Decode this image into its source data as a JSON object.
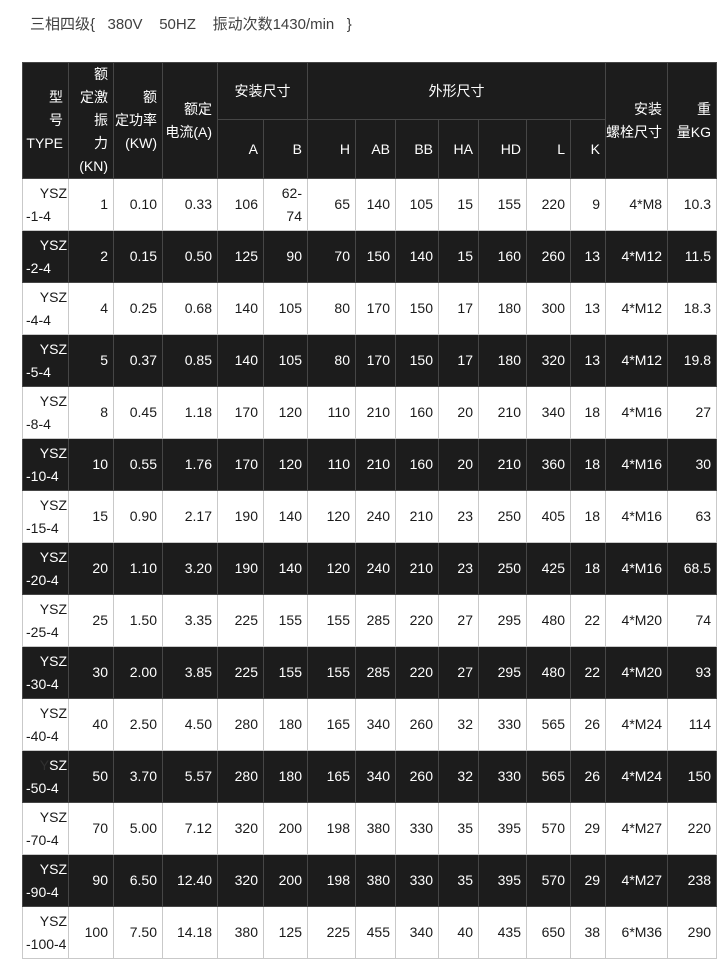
{
  "title": "三相四级{   380V    50HZ    振动次数1430/min   }",
  "colors": {
    "header_bg": "#1c1c1c",
    "dark_row_bg": "#1c1c1c",
    "dark_row_border": "#464646",
    "light_row_border": "#c9c9c9",
    "title_color": "#3f3f3f",
    "dim_y_color": "#303030"
  },
  "table": {
    "header": {
      "type": "型\n号\nTYPE",
      "force": "额\n定激振\n力(KN)",
      "power": "额\n定功率\n(KW)",
      "current": "额定\n电流(A)",
      "install_dims": "安装尺寸",
      "overall_dims": "外形尺寸",
      "bolt": "安装\n螺栓尺寸",
      "weight": "重\n量KG",
      "sub_labels": [
        "A",
        "B",
        "H",
        "AB",
        "BB",
        "HA",
        "HD",
        "L",
        "K"
      ]
    },
    "rows": [
      {
        "model_line1": "YSZ",
        "model_line2": "-1-4",
        "force_kn": "1",
        "power_kw": "0.10",
        "current_a": "0.33",
        "A": "106",
        "B": "62-74",
        "H": "65",
        "AB": "140",
        "BB": "105",
        "HA": "15",
        "HD": "155",
        "L": "220",
        "K": "9",
        "bolt": "4*M8",
        "weight_kg": "10.3"
      },
      {
        "model_line1": "YSZ",
        "model_line2": "-2-4",
        "force_kn": "2",
        "power_kw": "0.15",
        "current_a": "0.50",
        "A": "125",
        "B": "90",
        "H": "70",
        "AB": "150",
        "BB": "140",
        "HA": "15",
        "HD": "160",
        "L": "260",
        "K": "13",
        "bolt": "4*M12",
        "weight_kg": "11.5"
      },
      {
        "model_line1": "YSZ",
        "model_line2": "-4-4",
        "force_kn": "4",
        "power_kw": "0.25",
        "current_a": "0.68",
        "A": "140",
        "B": "105",
        "H": "80",
        "AB": "170",
        "BB": "150",
        "HA": "17",
        "HD": "180",
        "L": "300",
        "K": "13",
        "bolt": "4*M12",
        "weight_kg": "18.3"
      },
      {
        "model_line1": "YSZ",
        "model_line2": "-5-4",
        "force_kn": "5",
        "power_kw": "0.37",
        "current_a": "0.85",
        "A": "140",
        "B": "105",
        "H": "80",
        "AB": "170",
        "BB": "150",
        "HA": "17",
        "HD": "180",
        "L": "320",
        "K": "13",
        "bolt": "4*M12",
        "weight_kg": "19.8"
      },
      {
        "model_line1": "YSZ",
        "model_line2": "-8-4",
        "force_kn": "8",
        "power_kw": "0.45",
        "current_a": "1.18",
        "A": "170",
        "B": "120",
        "H": "110",
        "AB": "210",
        "BB": "160",
        "HA": "20",
        "HD": "210",
        "L": "340",
        "K": "18",
        "bolt": "4*M16",
        "weight_kg": "27"
      },
      {
        "model_line1": "YSZ",
        "model_line2": "-10-4",
        "force_kn": "10",
        "power_kw": "0.55",
        "current_a": "1.76",
        "A": "170",
        "B": "120",
        "H": "110",
        "AB": "210",
        "BB": "160",
        "HA": "20",
        "HD": "210",
        "L": "360",
        "K": "18",
        "bolt": "4*M16",
        "weight_kg": "30"
      },
      {
        "model_line1": "YSZ",
        "model_line2": "-15-4",
        "force_kn": "15",
        "power_kw": "0.90",
        "current_a": "2.17",
        "A": "190",
        "B": "140",
        "H": "120",
        "AB": "240",
        "BB": "210",
        "HA": "23",
        "HD": "250",
        "L": "405",
        "K": "18",
        "bolt": "4*M16",
        "weight_kg": "63"
      },
      {
        "model_line1": "YSZ",
        "model_line2": "-20-4",
        "force_kn": "20",
        "power_kw": "1.10",
        "current_a": "3.20",
        "A": "190",
        "B": "140",
        "H": "120",
        "AB": "240",
        "BB": "210",
        "HA": "23",
        "HD": "250",
        "L": "425",
        "K": "18",
        "bolt": "4*M16",
        "weight_kg": "68.5"
      },
      {
        "model_line1": "YSZ",
        "model_line2": "-25-4",
        "force_kn": "25",
        "power_kw": "1.50",
        "current_a": "3.35",
        "A": "225",
        "B": "155",
        "H": "155",
        "AB": "285",
        "BB": "220",
        "HA": "27",
        "HD": "295",
        "L": "480",
        "K": "22",
        "bolt": "4*M20",
        "weight_kg": "74"
      },
      {
        "model_line1": "YSZ",
        "model_line2": "-30-4",
        "force_kn": "30",
        "power_kw": "2.00",
        "current_a": "3.85",
        "A": "225",
        "B": "155",
        "H": "155",
        "AB": "285",
        "BB": "220",
        "HA": "27",
        "HD": "295",
        "L": "480",
        "K": "22",
        "bolt": "4*M20",
        "weight_kg": "93"
      },
      {
        "model_line1": "YSZ",
        "model_line2": "-40-4",
        "force_kn": "40",
        "power_kw": "2.50",
        "current_a": "4.50",
        "A": "280",
        "B": "180",
        "H": "165",
        "AB": "340",
        "BB": "260",
        "HA": "32",
        "HD": "330",
        "L": "565",
        "K": "26",
        "bolt": "4*M24",
        "weight_kg": "114"
      },
      {
        "model_line1": "YSZ",
        "model_line2": "-50-4",
        "y_dark": true,
        "force_kn": "50",
        "power_kw": "3.70",
        "current_a": "5.57",
        "A": "280",
        "B": "180",
        "H": "165",
        "AB": "340",
        "BB": "260",
        "HA": "32",
        "HD": "330",
        "L": "565",
        "K": "26",
        "bolt": "4*M24",
        "weight_kg": "150"
      },
      {
        "model_line1": "YSZ",
        "model_line2": "-70-4",
        "force_kn": "70",
        "power_kw": "5.00",
        "current_a": "7.12",
        "A": "320",
        "B": "200",
        "H": "198",
        "AB": "380",
        "BB": "330",
        "HA": "35",
        "HD": "395",
        "L": "570",
        "K": "29",
        "bolt": "4*M27",
        "weight_kg": "220"
      },
      {
        "model_line1": "YSZ",
        "model_line2": "-90-4",
        "force_kn": "90",
        "power_kw": "6.50",
        "current_a": "12.40",
        "A": "320",
        "B": "200",
        "H": "198",
        "AB": "380",
        "BB": "330",
        "HA": "35",
        "HD": "395",
        "L": "570",
        "K": "29",
        "bolt": "4*M27",
        "weight_kg": "238"
      },
      {
        "model_line1": "YSZ",
        "model_line2": "-100-4",
        "force_kn": "100",
        "power_kw": "7.50",
        "current_a": "14.18",
        "A": "380",
        "B": "125",
        "H": "225",
        "AB": "455",
        "BB": "340",
        "HA": "40",
        "HD": "435",
        "L": "650",
        "K": "38",
        "bolt": "6*M36",
        "weight_kg": "290"
      }
    ]
  }
}
